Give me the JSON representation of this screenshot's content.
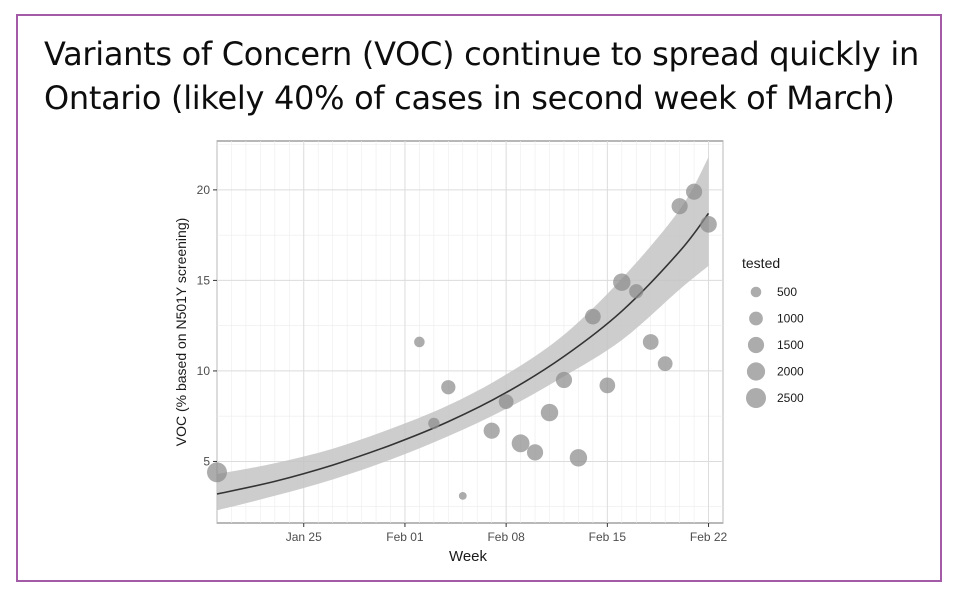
{
  "slide": {
    "title_line1": "Variants of Concern (VOC) continue to spread quickly in",
    "title_line2": "Ontario (likely 40% of cases in second week of March)"
  },
  "chart_data": {
    "type": "scatter",
    "xlabel": "Week",
    "ylabel": "VOC (% based on N501Y screening)",
    "x_ticks": [
      "Jan 25",
      "Feb 01",
      "Feb 08",
      "Feb 15",
      "Feb 22"
    ],
    "y_ticks": [
      5,
      10,
      15,
      20
    ],
    "xlim": [
      "2021-01-19",
      "2021-02-23"
    ],
    "ylim": [
      1.6,
      22.7
    ],
    "grid": true,
    "point_color": "#8c8c8c",
    "curve_color": "#333333",
    "band_color": "#c4c4c4",
    "legend": {
      "title": "tested",
      "placement": "right",
      "sizes": [
        500,
        1000,
        1500,
        2000,
        2500
      ]
    },
    "points": [
      {
        "x": "2021-01-19",
        "y": 4.4,
        "tested": 2500
      },
      {
        "x": "2021-02-02",
        "y": 11.6,
        "tested": 500
      },
      {
        "x": "2021-02-03",
        "y": 7.1,
        "tested": 600
      },
      {
        "x": "2021-02-04",
        "y": 9.1,
        "tested": 1100
      },
      {
        "x": "2021-02-05",
        "y": 3.1,
        "tested": 200
      },
      {
        "x": "2021-02-07",
        "y": 6.7,
        "tested": 1500
      },
      {
        "x": "2021-02-08",
        "y": 8.3,
        "tested": 1200
      },
      {
        "x": "2021-02-09",
        "y": 6.0,
        "tested": 1900
      },
      {
        "x": "2021-02-10",
        "y": 5.5,
        "tested": 1500
      },
      {
        "x": "2021-02-11",
        "y": 7.7,
        "tested": 1800
      },
      {
        "x": "2021-02-12",
        "y": 9.5,
        "tested": 1500
      },
      {
        "x": "2021-02-13",
        "y": 5.2,
        "tested": 1800
      },
      {
        "x": "2021-02-14",
        "y": 13.0,
        "tested": 1400
      },
      {
        "x": "2021-02-15",
        "y": 9.2,
        "tested": 1400
      },
      {
        "x": "2021-02-16",
        "y": 14.9,
        "tested": 1800
      },
      {
        "x": "2021-02-17",
        "y": 14.4,
        "tested": 1100
      },
      {
        "x": "2021-02-18",
        "y": 11.6,
        "tested": 1400
      },
      {
        "x": "2021-02-19",
        "y": 10.4,
        "tested": 1200
      },
      {
        "x": "2021-02-20",
        "y": 19.1,
        "tested": 1500
      },
      {
        "x": "2021-02-21",
        "y": 19.9,
        "tested": 1500
      },
      {
        "x": "2021-02-22",
        "y": 18.1,
        "tested": 1600
      }
    ],
    "fit": {
      "x": [
        "2021-01-19",
        "2021-01-23",
        "2021-01-27",
        "2021-01-31",
        "2021-02-04",
        "2021-02-08",
        "2021-02-12",
        "2021-02-16",
        "2021-02-20",
        "2021-02-22"
      ],
      "y": [
        3.2,
        3.9,
        4.8,
        5.9,
        7.2,
        8.8,
        10.8,
        13.3,
        16.6,
        18.7
      ],
      "lower": [
        2.3,
        3.1,
        4.0,
        5.1,
        6.4,
        7.9,
        9.7,
        11.7,
        14.5,
        15.8
      ],
      "upper": [
        4.3,
        4.9,
        5.7,
        6.8,
        8.1,
        9.8,
        12.0,
        15.1,
        18.9,
        21.8
      ]
    }
  }
}
